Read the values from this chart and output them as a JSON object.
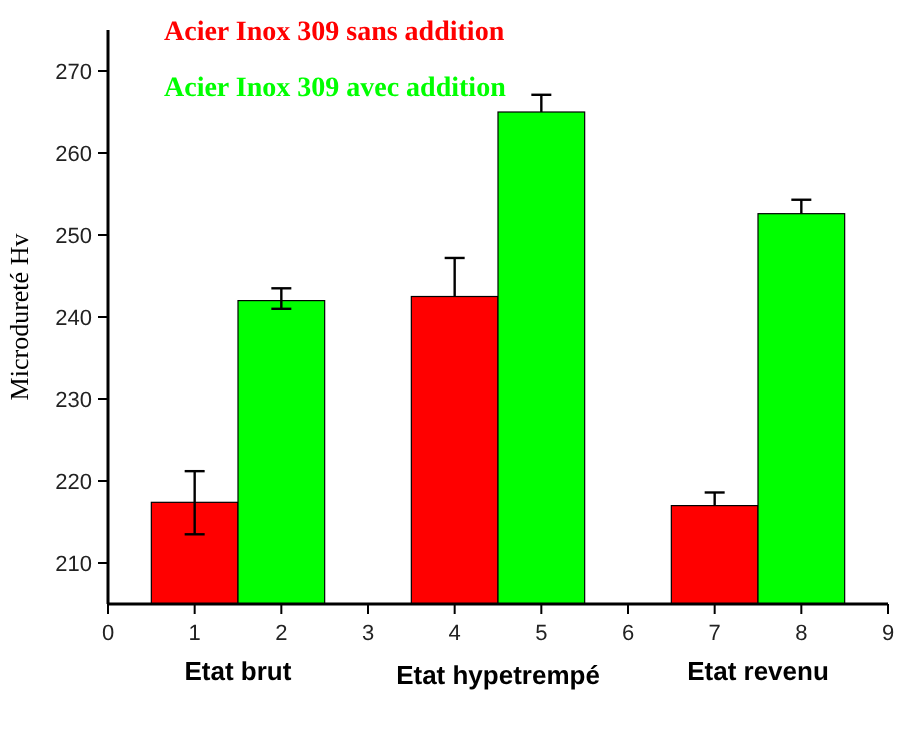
{
  "chart_data": {
    "type": "bar",
    "ylabel": "Microdureté Hv",
    "xlim": [
      0,
      9
    ],
    "xticks": [
      0,
      1,
      2,
      3,
      4,
      5,
      6,
      7,
      8,
      9
    ],
    "ylim": [
      205,
      275
    ],
    "yticks": [
      210,
      220,
      230,
      240,
      250,
      260,
      270
    ],
    "legend": "top",
    "grid": false,
    "series": [
      {
        "name": "Acier Inox 309 sans addition",
        "color": "#ff0000",
        "x": [
          1,
          4,
          7
        ],
        "values": [
          217.4,
          242.5,
          217.0
        ],
        "errors": [
          [
            213.5,
            221.2
          ],
          [
            242.5,
            247.2
          ],
          [
            217.0,
            218.6
          ]
        ]
      },
      {
        "name": "Acier Inox 309 avec addition",
        "color": "#00ff00",
        "x": [
          2,
          5,
          8
        ],
        "values": [
          242.0,
          265.0,
          252.6
        ],
        "errors": [
          [
            241.0,
            243.5
          ],
          [
            265.0,
            267.1
          ],
          [
            252.6,
            254.3
          ]
        ]
      }
    ],
    "annotations": [
      "Etat brut",
      "Etat hypetrempé",
      "Etat revenu"
    ]
  }
}
